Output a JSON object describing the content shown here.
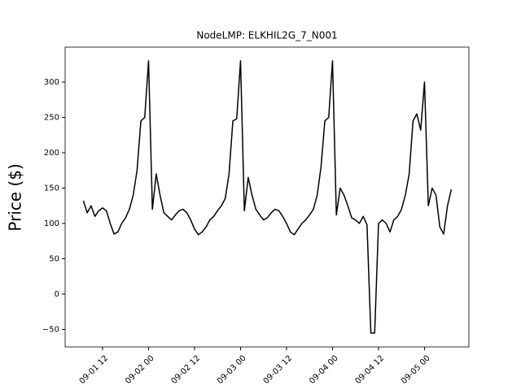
{
  "chart_data": {
    "type": "line",
    "title": "NodeLMP: ELKHIL2G_7_N001",
    "y_label": "Price ($)",
    "x": [
      "09-01 07:00",
      "09-01 08:00",
      "09-01 09:00",
      "09-01 10:00",
      "09-01 11:00",
      "09-01 12:00",
      "09-01 13:00",
      "09-01 14:00",
      "09-01 15:00",
      "09-01 16:00",
      "09-01 17:00",
      "09-01 18:00",
      "09-01 19:00",
      "09-01 20:00",
      "09-01 21:00",
      "09-01 22:00",
      "09-01 23:00",
      "09-02 00:00",
      "09-02 01:00",
      "09-02 02:00",
      "09-02 03:00",
      "09-02 04:00",
      "09-02 05:00",
      "09-02 06:00",
      "09-02 07:00",
      "09-02 08:00",
      "09-02 09:00",
      "09-02 10:00",
      "09-02 11:00",
      "09-02 12:00",
      "09-02 13:00",
      "09-02 14:00",
      "09-02 15:00",
      "09-02 16:00",
      "09-02 17:00",
      "09-02 18:00",
      "09-02 19:00",
      "09-02 20:00",
      "09-02 21:00",
      "09-02 22:00",
      "09-02 23:00",
      "09-03 00:00",
      "09-03 01:00",
      "09-03 02:00",
      "09-03 03:00",
      "09-03 04:00",
      "09-03 05:00",
      "09-03 06:00",
      "09-03 07:00",
      "09-03 08:00",
      "09-03 09:00",
      "09-03 10:00",
      "09-03 11:00",
      "09-03 12:00",
      "09-03 13:00",
      "09-03 14:00",
      "09-03 15:00",
      "09-03 16:00",
      "09-03 17:00",
      "09-03 18:00",
      "09-03 19:00",
      "09-03 20:00",
      "09-03 21:00",
      "09-03 22:00",
      "09-03 23:00",
      "09-04 00:00",
      "09-04 01:00",
      "09-04 02:00",
      "09-04 03:00",
      "09-04 04:00",
      "09-04 05:00",
      "09-04 06:00",
      "09-04 07:00",
      "09-04 08:00",
      "09-04 09:00",
      "09-04 10:00",
      "09-04 11:00",
      "09-04 12:00",
      "09-04 13:00",
      "09-04 14:00",
      "09-04 15:00",
      "09-04 16:00",
      "09-04 17:00",
      "09-04 18:00",
      "09-04 19:00",
      "09-04 20:00",
      "09-04 21:00",
      "09-04 22:00",
      "09-04 23:00",
      "09-05 00:00",
      "09-05 01:00",
      "09-05 02:00",
      "09-05 03:00",
      "09-05 04:00",
      "09-05 05:00",
      "09-05 06:00",
      "09-05 07:00"
    ],
    "values": [
      132,
      115,
      125,
      110,
      118,
      122,
      118,
      100,
      85,
      88,
      100,
      108,
      120,
      140,
      175,
      245,
      250,
      330,
      120,
      170,
      140,
      115,
      110,
      105,
      112,
      118,
      120,
      115,
      105,
      92,
      84,
      88,
      95,
      105,
      110,
      118,
      125,
      135,
      170,
      245,
      248,
      330,
      118,
      165,
      140,
      120,
      112,
      105,
      108,
      115,
      120,
      118,
      110,
      100,
      88,
      84,
      92,
      100,
      105,
      112,
      120,
      140,
      180,
      245,
      250,
      330,
      112,
      150,
      140,
      125,
      108,
      105,
      100,
      110,
      98,
      -55,
      -55,
      100,
      105,
      100,
      88,
      105,
      110,
      120,
      140,
      170,
      245,
      255,
      232,
      300,
      125,
      150,
      140,
      95,
      85,
      125,
      148
    ],
    "color": "#000000",
    "xlim": [
      "09-01 02:14",
      "09-05 11:35"
    ],
    "xticks": [
      {
        "value": "09-01 12:00",
        "label": "09-01 12"
      },
      {
        "value": "09-02 00:00",
        "label": "09-02 00"
      },
      {
        "value": "09-02 12:00",
        "label": "09-02 12"
      },
      {
        "value": "09-03 00:00",
        "label": "09-03 00"
      },
      {
        "value": "09-03 12:00",
        "label": "09-03 12"
      },
      {
        "value": "09-04 00:00",
        "label": "09-04 00"
      },
      {
        "value": "09-04 12:00",
        "label": "09-04 12"
      },
      {
        "value": "09-05 00:00",
        "label": "09-05 00"
      }
    ],
    "ylim": [
      -74.7,
      349.4
    ],
    "yticks": [
      {
        "value": -50,
        "label": "−50"
      },
      0,
      50,
      100,
      150,
      200,
      250,
      300
    ]
  }
}
